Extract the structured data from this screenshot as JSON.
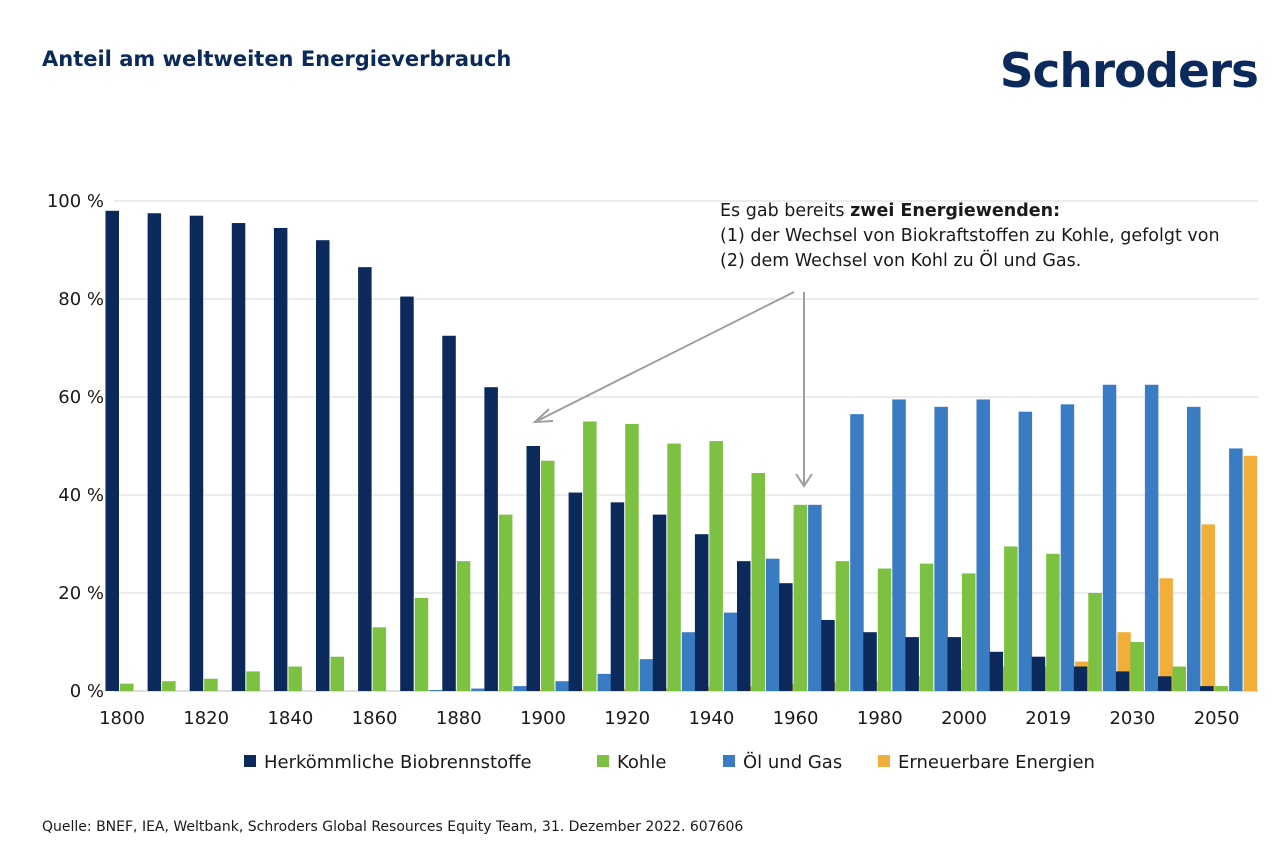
{
  "header": {
    "title": "Anteil am weltweiten Energieverbrauch",
    "logo": "Schroders"
  },
  "annotation": {
    "line1_prefix": "Es gab bereits ",
    "line1_bold": "zwei Energiewenden:",
    "line2": "(1) der Wechsel von Biokraftstoffen zu Kohle, gefolgt von",
    "line3": "(2) dem Wechsel von Kohl zu Öl und Gas."
  },
  "source": "Quelle: BNEF, IEA, Weltbank, Schroders Global Resources Equity Team, 31. Dezember 2022. 607606",
  "colors": {
    "biofuels": "#0b2a5b",
    "coal": "#7cc142",
    "oil_gas": "#3a7cc4",
    "renewables": "#f2ae3b",
    "grid": "#d9d9d9",
    "arrow": "#9e9e9e"
  },
  "chart_data": {
    "type": "bar",
    "title": "Anteil am weltweiten Energieverbrauch",
    "ylim": [
      0,
      100
    ],
    "y_ticks": [
      "0 %",
      "20 %",
      "40 %",
      "60 %",
      "80 %",
      "100 %"
    ],
    "x_tick_labels": [
      "1800",
      "1820",
      "1840",
      "1860",
      "1880",
      "1900",
      "1920",
      "1940",
      "1960",
      "1980",
      "2000",
      "2019",
      "2030",
      "2050"
    ],
    "categories": [
      "1800",
      "1810",
      "1820",
      "1830",
      "1840",
      "1850",
      "1860",
      "1870",
      "1880",
      "1890",
      "1900",
      "1910",
      "1920",
      "1930",
      "1940",
      "1950",
      "1960",
      "1970",
      "1980",
      "1990",
      "2000",
      "2010",
      "2019",
      "2025",
      "2030",
      "2040",
      "2050"
    ],
    "legend_position": "bottom",
    "grid": true,
    "series": [
      {
        "name": "Herkömmliche Biobrennstoffe",
        "color": "#0b2a5b",
        "values": [
          98,
          97.5,
          97,
          95.5,
          94.5,
          92,
          86.5,
          80.5,
          72.5,
          62,
          50,
          40.5,
          38.5,
          36,
          32,
          26.5,
          22,
          14.5,
          12,
          11,
          11,
          8,
          7,
          5,
          4,
          3,
          1
        ]
      },
      {
        "name": "Kohle",
        "color": "#7cc142",
        "values": [
          1.5,
          2,
          2.5,
          4,
          5,
          7,
          13,
          19,
          26.5,
          36,
          47,
          55,
          54.5,
          50.5,
          51,
          44.5,
          38,
          26.5,
          25,
          26,
          24,
          29.5,
          28,
          20,
          10,
          5,
          1
        ]
      },
      {
        "name": "Öl und Gas",
        "color": "#3a7cc4",
        "values": [
          0,
          0,
          0,
          0,
          0,
          0,
          0,
          0.2,
          0.5,
          1,
          2,
          3.5,
          6.5,
          12,
          16,
          27,
          38,
          56.5,
          59.5,
          58,
          59.5,
          57,
          58.5,
          62.5,
          62.5,
          58,
          49.5
        ]
      },
      {
        "name": "Erneuerbare Energien",
        "color": "#f2ae3b",
        "values": [
          0,
          0,
          0,
          0,
          0,
          0,
          0,
          0,
          0,
          0.2,
          0.3,
          0.4,
          0.5,
          0.8,
          1,
          1.5,
          1.8,
          2,
          3,
          4.5,
          5,
          5,
          6,
          12,
          23,
          34,
          48
        ]
      }
    ]
  }
}
